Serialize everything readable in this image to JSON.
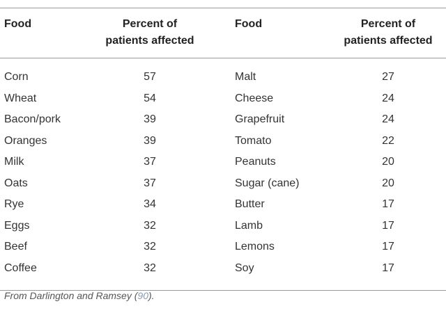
{
  "table": {
    "headers": {
      "food_left": "Food",
      "percent_left_line1": "Percent of",
      "percent_left_line2": "patients affected",
      "food_right": "Food",
      "percent_right_line1": "Percent of",
      "percent_right_line2": "patients affected"
    },
    "rows": [
      {
        "food_left": "Corn",
        "pct_left": "57",
        "food_right": "Malt",
        "pct_right": "27"
      },
      {
        "food_left": "Wheat",
        "pct_left": "54",
        "food_right": "Cheese",
        "pct_right": "24"
      },
      {
        "food_left": "Bacon/pork",
        "pct_left": "39",
        "food_right": "Grapefruit",
        "pct_right": "24"
      },
      {
        "food_left": "Oranges",
        "pct_left": "39",
        "food_right": "Tomato",
        "pct_right": "22"
      },
      {
        "food_left": "Milk",
        "pct_left": "37",
        "food_right": "Peanuts",
        "pct_right": "20"
      },
      {
        "food_left": "Oats",
        "pct_left": "37",
        "food_right": "Sugar (cane)",
        "pct_right": "20"
      },
      {
        "food_left": "Rye",
        "pct_left": "34",
        "food_right": "Butter",
        "pct_right": "17"
      },
      {
        "food_left": "Eggs",
        "pct_left": "32",
        "food_right": "Lamb",
        "pct_right": "17"
      },
      {
        "food_left": "Beef",
        "pct_left": "32",
        "food_right": "Lemons",
        "pct_right": "17"
      },
      {
        "food_left": "Coffee",
        "pct_left": "32",
        "food_right": "Soy",
        "pct_right": "17"
      }
    ]
  },
  "footnote": {
    "prefix": "From Darlington and Ramsey (",
    "ref": "90",
    "suffix": ")."
  },
  "colors": {
    "rule": "#9a9a9a",
    "text": "#333333",
    "ref_link": "#8a9bb0"
  }
}
